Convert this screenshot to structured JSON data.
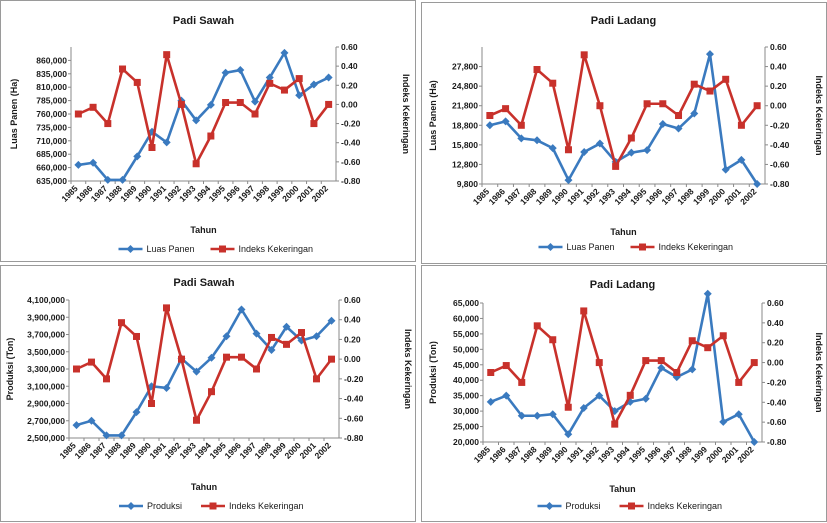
{
  "colors": {
    "primary": "#3a7abf",
    "secondary": "#c8312b",
    "axis": "#8a8a8a"
  },
  "chart_data": [
    {
      "type": "line",
      "title": "Padi Sawah",
      "xlabel": "Tahun",
      "ylabel": "Luas Panen (Ha)",
      "y2label": "Indeks Kekeringan",
      "categories": [
        "1985",
        "1986",
        "1987",
        "1988",
        "1989",
        "1990",
        "1991",
        "1992",
        "1993",
        "1994",
        "1995",
        "1996",
        "1997",
        "1998",
        "1999",
        "2000",
        "2001",
        "2002"
      ],
      "ylim": [
        635000,
        885000
      ],
      "yticks": [
        635000,
        660000,
        685000,
        710000,
        735000,
        760000,
        785000,
        810000,
        835000,
        860000
      ],
      "ytick_labels": [
        "635,000",
        "660,000",
        "685,000",
        "710,000",
        "735,000",
        "760,000",
        "785,000",
        "810,000",
        "835,000",
        "860,000"
      ],
      "y2lim": [
        -0.8,
        0.6
      ],
      "y2ticks": [
        -0.8,
        -0.6,
        -0.4,
        -0.2,
        0.0,
        0.2,
        0.4,
        0.6
      ],
      "y2tick_labels": [
        "-0.80",
        "-0.60",
        "-0.40",
        "-0.20",
        "0.00",
        "0.20",
        "0.40",
        "0.60"
      ],
      "series": [
        {
          "name": "Luas Panen",
          "axis": "left",
          "marker": "diamond",
          "values": [
            665000,
            669000,
            637000,
            637000,
            681000,
            727000,
            707000,
            785000,
            748000,
            777000,
            837000,
            842000,
            783000,
            828000,
            874000,
            795000,
            815000,
            828000
          ]
        },
        {
          "name": "Indeks Kekeringan",
          "axis": "right",
          "marker": "square",
          "values": [
            -0.1,
            -0.03,
            -0.2,
            0.37,
            0.23,
            -0.45,
            0.52,
            0.0,
            -0.62,
            -0.33,
            0.02,
            0.02,
            -0.1,
            0.22,
            0.15,
            0.27,
            -0.2,
            0.0
          ]
        }
      ]
    },
    {
      "type": "line",
      "title": "Padi Ladang",
      "xlabel": "Tahun",
      "ylabel": "Luas Panen (Ha)",
      "y2label": "Indeks Kekeringan",
      "categories": [
        "1985",
        "1986",
        "1987",
        "1988",
        "1989",
        "1990",
        "1991",
        "1992",
        "1993",
        "1994",
        "1995",
        "1996",
        "1997",
        "1998",
        "1999",
        "2000",
        "2001",
        "2002"
      ],
      "ylim": [
        9800,
        30800
      ],
      "yticks": [
        9800,
        12800,
        15800,
        18800,
        21800,
        24800,
        27800
      ],
      "ytick_labels": [
        "9,800",
        "12,800",
        "15,800",
        "18,800",
        "21,800",
        "24,800",
        "27,800"
      ],
      "y2lim": [
        -0.8,
        0.6
      ],
      "y2ticks": [
        -0.8,
        -0.6,
        -0.4,
        -0.2,
        0.0,
        0.2,
        0.4,
        0.6
      ],
      "y2tick_labels": [
        "-0.80",
        "-0.60",
        "-0.40",
        "-0.20",
        "0.00",
        "0.20",
        "0.40",
        "0.60"
      ],
      "series": [
        {
          "name": "Luas Panen",
          "axis": "left",
          "marker": "diamond",
          "values": [
            18800,
            19400,
            16800,
            16500,
            15300,
            10400,
            14700,
            16000,
            13200,
            14600,
            15000,
            19000,
            18300,
            20600,
            29700,
            12000,
            13500,
            9800
          ]
        },
        {
          "name": "Indeks Kekeringan",
          "axis": "right",
          "marker": "square",
          "values": [
            -0.1,
            -0.03,
            -0.2,
            0.37,
            0.23,
            -0.45,
            0.52,
            0.0,
            -0.62,
            -0.33,
            0.02,
            0.02,
            -0.1,
            0.22,
            0.15,
            0.27,
            -0.2,
            0.0
          ]
        }
      ]
    },
    {
      "type": "line",
      "title": "Padi Sawah",
      "xlabel": "Tahun",
      "ylabel": "Produksi (Ton)",
      "y2label": "Indeks Kekeringan",
      "categories": [
        "1985",
        "1986",
        "1987",
        "1988",
        "1989",
        "1990",
        "1991",
        "1992",
        "1993",
        "1994",
        "1995",
        "1996",
        "1997",
        "1998",
        "1999",
        "2000",
        "2001",
        "2002"
      ],
      "ylim": [
        2500000,
        4100000
      ],
      "yticks": [
        2500000,
        2700000,
        2900000,
        3100000,
        3300000,
        3500000,
        3700000,
        3900000,
        4100000
      ],
      "ytick_labels": [
        "2,500,000",
        "2,700,000",
        "2,900,000",
        "3,100,000",
        "3,300,000",
        "3,500,000",
        "3,700,000",
        "3,900,000",
        "4,100,000"
      ],
      "y2lim": [
        -0.8,
        0.6
      ],
      "y2ticks": [
        -0.8,
        -0.6,
        -0.4,
        -0.2,
        0.0,
        0.2,
        0.4,
        0.6
      ],
      "y2tick_labels": [
        "-0.80",
        "-0.60",
        "-0.40",
        "-0.20",
        "0.00",
        "0.20",
        "0.40",
        "0.60"
      ],
      "series": [
        {
          "name": "Produksi",
          "axis": "left",
          "marker": "diamond",
          "values": [
            2650000,
            2700000,
            2530000,
            2530000,
            2800000,
            3100000,
            3080000,
            3420000,
            3270000,
            3430000,
            3680000,
            3990000,
            3710000,
            3520000,
            3790000,
            3630000,
            3680000,
            3860000
          ]
        },
        {
          "name": "Indeks Kekeringan",
          "axis": "right",
          "marker": "square",
          "values": [
            -0.1,
            -0.03,
            -0.2,
            0.37,
            0.23,
            -0.45,
            0.52,
            0.0,
            -0.62,
            -0.33,
            0.02,
            0.02,
            -0.1,
            0.22,
            0.15,
            0.27,
            -0.2,
            0.0
          ]
        }
      ]
    },
    {
      "type": "line",
      "title": "Padi Ladang",
      "xlabel": "Tahun",
      "ylabel": "Produksi (Ton)",
      "y2label": "Indeks Kekeringan",
      "categories": [
        "1985",
        "1986",
        "1987",
        "1988",
        "1989",
        "1990",
        "1991",
        "1992",
        "1993",
        "1994",
        "1995",
        "1996",
        "1997",
        "1998",
        "1999",
        "2000",
        "2001",
        "2002"
      ],
      "ylim": [
        20000,
        65000
      ],
      "yticks": [
        20000,
        25000,
        30000,
        35000,
        40000,
        45000,
        50000,
        55000,
        60000,
        65000
      ],
      "ytick_labels": [
        "20,000",
        "25,000",
        "30,000",
        "35,000",
        "40,000",
        "45,000",
        "50,000",
        "55,000",
        "60,000",
        "65,000"
      ],
      "y2lim": [
        -0.8,
        0.6
      ],
      "y2ticks": [
        -0.8,
        -0.6,
        -0.4,
        -0.2,
        0.0,
        0.2,
        0.4,
        0.6
      ],
      "y2tick_labels": [
        "-0.80",
        "-0.60",
        "-0.40",
        "-0.20",
        "0.00",
        "0.20",
        "0.40",
        "0.60"
      ],
      "series": [
        {
          "name": "Produksi",
          "axis": "left",
          "marker": "diamond",
          "values": [
            33000,
            35000,
            28500,
            28500,
            29000,
            22500,
            31000,
            35000,
            30000,
            33000,
            34000,
            44000,
            41000,
            43500,
            68000,
            26500,
            29000,
            20000
          ]
        },
        {
          "name": "Indeks Kekeringan",
          "axis": "right",
          "marker": "square",
          "values": [
            -0.1,
            -0.03,
            -0.2,
            0.37,
            0.23,
            -0.45,
            0.52,
            0.0,
            -0.62,
            -0.33,
            0.02,
            0.02,
            -0.1,
            0.22,
            0.15,
            0.27,
            -0.2,
            0.0
          ]
        }
      ]
    }
  ]
}
